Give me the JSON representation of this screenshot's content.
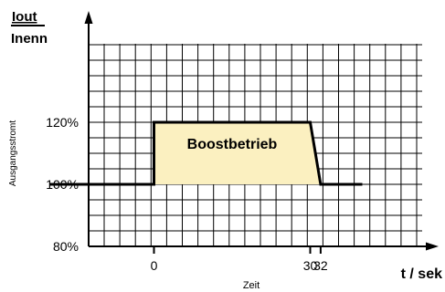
{
  "chart_data": {
    "type": "line",
    "ylabel_numerator": "Iout",
    "ylabel_denominator": "Inenn",
    "ylabel_side": "Ausgangsstromt",
    "xlabel_unit": "t / sek",
    "xlabel_caption": "Zeit",
    "annotation": "Boostbetrieb",
    "yticks": [
      {
        "value": 80,
        "label": "80%"
      },
      {
        "value": 100,
        "label": "100%"
      },
      {
        "value": 120,
        "label": "120%"
      }
    ],
    "xticks": [
      {
        "value": 0,
        "label": "0"
      },
      {
        "value": 30,
        "label": "30"
      },
      {
        "value": 32,
        "label": "32"
      }
    ],
    "series": [
      {
        "x": [
          -20,
          0,
          0,
          30,
          32,
          40
        ],
        "y": [
          100,
          100,
          120,
          120,
          100,
          100
        ]
      }
    ],
    "shaded_region": {
      "x": [
        0,
        0,
        30,
        32
      ],
      "y": [
        100,
        120,
        120,
        100
      ]
    },
    "grid": true,
    "fill_color": "#fbf0c0",
    "line_color": "#000000"
  }
}
